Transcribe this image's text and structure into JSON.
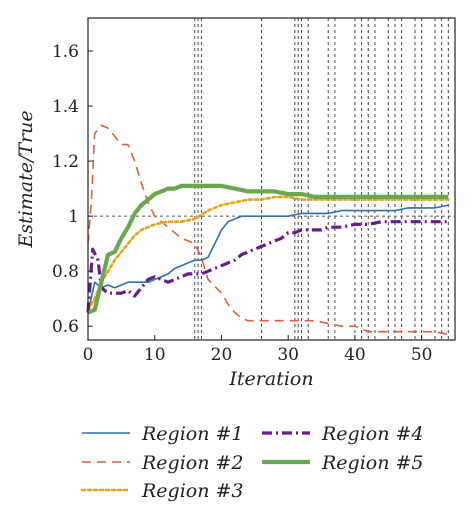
{
  "chart_data": {
    "type": "line",
    "xlabel": "Iteration",
    "ylabel": "Estimate/True",
    "xlim": [
      0,
      55
    ],
    "ylim": [
      0.55,
      1.72
    ],
    "xticks": [
      "0",
      "10",
      "20",
      "30",
      "40",
      "50"
    ],
    "yticks": [
      "0.6",
      "0.8",
      "1",
      "1.2",
      "1.4",
      "1.6"
    ],
    "reference_line": {
      "y": 1,
      "style": "dotted",
      "color": "#555555"
    },
    "vertical_markers": [
      16,
      16.5,
      17,
      26,
      31,
      31.5,
      32,
      33,
      36,
      37,
      40,
      41,
      42,
      43,
      45,
      46,
      47,
      49,
      50,
      52,
      53,
      54
    ],
    "grid": false,
    "legend_position": "bottom",
    "series": [
      {
        "name": "Region #1",
        "color": "#2f6fb0",
        "style": "solid",
        "width": 1.6,
        "x": [
          0,
          1,
          2,
          3,
          4,
          5,
          6,
          7,
          8,
          9,
          10,
          11,
          12,
          13,
          14,
          15,
          16,
          17,
          18,
          19,
          20,
          21,
          22,
          23,
          24,
          25,
          26,
          27,
          28,
          30,
          32,
          34,
          36,
          38,
          40,
          42,
          44,
          46,
          48,
          50,
          52,
          54
        ],
        "y": [
          0.65,
          0.76,
          0.74,
          0.75,
          0.74,
          0.75,
          0.76,
          0.76,
          0.76,
          0.76,
          0.77,
          0.78,
          0.79,
          0.81,
          0.82,
          0.83,
          0.84,
          0.84,
          0.85,
          0.9,
          0.95,
          0.98,
          0.99,
          1.0,
          1.0,
          1.0,
          1.0,
          1.0,
          1.0,
          1.0,
          1.01,
          1.01,
          1.01,
          1.02,
          1.02,
          1.02,
          1.02,
          1.02,
          1.03,
          1.03,
          1.03,
          1.04
        ]
      },
      {
        "name": "Region #2",
        "color": "#d9623b",
        "style": "dashed",
        "width": 1.6,
        "x": [
          0,
          0.5,
          1,
          2,
          3,
          4,
          5,
          6,
          7,
          8,
          9,
          10,
          12,
          14,
          16,
          17,
          18,
          20,
          21,
          22,
          23,
          24,
          25,
          26,
          28,
          30,
          32,
          34,
          36,
          38,
          40,
          42,
          44,
          46,
          48,
          50,
          52,
          54
        ],
        "y": [
          0.9,
          1.05,
          1.3,
          1.33,
          1.32,
          1.29,
          1.26,
          1.26,
          1.2,
          1.12,
          1.05,
          1.0,
          0.96,
          0.92,
          0.9,
          0.85,
          0.77,
          0.72,
          0.68,
          0.65,
          0.63,
          0.62,
          0.62,
          0.62,
          0.62,
          0.62,
          0.62,
          0.62,
          0.61,
          0.6,
          0.6,
          0.58,
          0.58,
          0.58,
          0.58,
          0.58,
          0.58,
          0.57
        ]
      },
      {
        "name": "Region #3",
        "color": "#e8a31a",
        "style": "dotted",
        "width": 2.6,
        "x": [
          0,
          1,
          2,
          3,
          4,
          5,
          6,
          7,
          8,
          9,
          10,
          12,
          14,
          16,
          18,
          20,
          22,
          24,
          26,
          28,
          30,
          32,
          34,
          36,
          38,
          40,
          42,
          44,
          46,
          48,
          50,
          52,
          54
        ],
        "y": [
          0.66,
          0.7,
          0.76,
          0.8,
          0.84,
          0.87,
          0.9,
          0.93,
          0.95,
          0.96,
          0.97,
          0.98,
          0.98,
          0.99,
          1.02,
          1.04,
          1.05,
          1.06,
          1.06,
          1.07,
          1.07,
          1.06,
          1.06,
          1.06,
          1.06,
          1.06,
          1.06,
          1.06,
          1.06,
          1.06,
          1.06,
          1.06,
          1.06
        ]
      },
      {
        "name": "Region #4",
        "color": "#6a1b8a",
        "style": "dashdot",
        "width": 3.2,
        "x": [
          0,
          0.7,
          1.5,
          2,
          3,
          4,
          5,
          6,
          7,
          8,
          9,
          10,
          11,
          12,
          13,
          14,
          15,
          16,
          17,
          18,
          19,
          20,
          21,
          22,
          23,
          24,
          25,
          26,
          27,
          28,
          29,
          30,
          31,
          32,
          33,
          34,
          35,
          36,
          38,
          40,
          42,
          44,
          46,
          48,
          50,
          52,
          54
        ],
        "y": [
          0.65,
          0.88,
          0.84,
          0.74,
          0.72,
          0.72,
          0.72,
          0.73,
          0.71,
          0.74,
          0.77,
          0.78,
          0.77,
          0.76,
          0.77,
          0.78,
          0.79,
          0.79,
          0.79,
          0.8,
          0.81,
          0.82,
          0.83,
          0.84,
          0.86,
          0.87,
          0.88,
          0.89,
          0.9,
          0.91,
          0.92,
          0.94,
          0.94,
          0.95,
          0.95,
          0.95,
          0.95,
          0.96,
          0.96,
          0.97,
          0.97,
          0.98,
          0.98,
          0.98,
          0.98,
          0.98,
          0.98
        ]
      },
      {
        "name": "Region #5",
        "color": "#6aa84f",
        "style": "solid",
        "width": 4.2,
        "x": [
          0,
          1,
          2,
          3,
          4,
          5,
          6,
          7,
          8,
          9,
          10,
          11,
          12,
          13,
          14,
          15,
          16,
          18,
          20,
          22,
          24,
          26,
          28,
          30,
          32,
          34,
          36,
          38,
          40,
          42,
          44,
          46,
          48,
          50,
          52,
          54
        ],
        "y": [
          0.65,
          0.66,
          0.76,
          0.86,
          0.87,
          0.92,
          0.96,
          1.01,
          1.04,
          1.06,
          1.08,
          1.09,
          1.1,
          1.1,
          1.11,
          1.11,
          1.11,
          1.11,
          1.11,
          1.1,
          1.09,
          1.09,
          1.09,
          1.08,
          1.08,
          1.07,
          1.07,
          1.07,
          1.07,
          1.07,
          1.07,
          1.07,
          1.07,
          1.07,
          1.07,
          1.07
        ]
      }
    ]
  }
}
